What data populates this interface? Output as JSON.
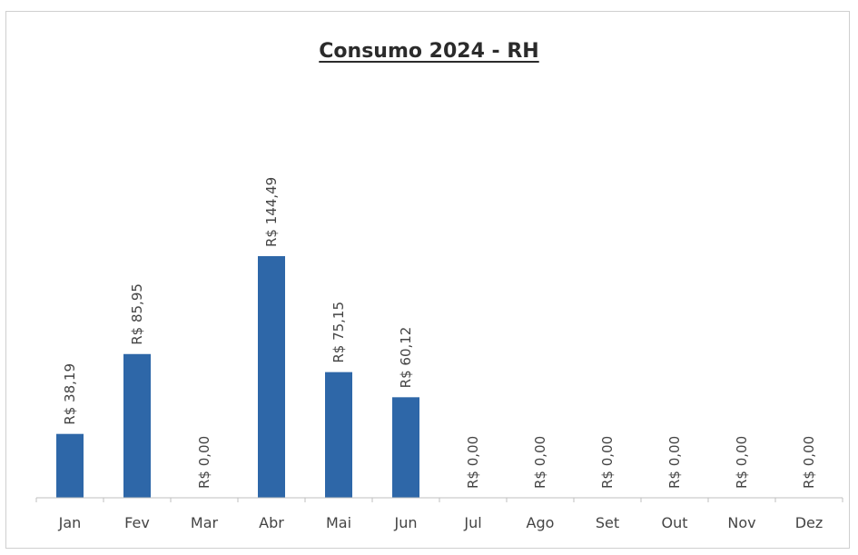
{
  "chart_data": {
    "type": "bar",
    "title": "Consumo 2024 - RH",
    "xlabel": "",
    "ylabel": "",
    "categories": [
      "Jan",
      "Fev",
      "Mar",
      "Abr",
      "Mai",
      "Jun",
      "Jul",
      "Ago",
      "Set",
      "Out",
      "Nov",
      "Dez"
    ],
    "values": [
      38.19,
      85.95,
      0.0,
      144.49,
      75.15,
      60.12,
      0.0,
      0.0,
      0.0,
      0.0,
      0.0,
      0.0
    ],
    "data_labels": [
      "R$ 38,19",
      "R$ 85,95",
      "R$ 0,00",
      "R$ 144,49",
      "R$ 75,15",
      "R$ 60,12",
      "R$ 0,00",
      "R$ 0,00",
      "R$ 0,00",
      "R$ 0,00",
      "R$ 0,00",
      "R$ 0,00"
    ],
    "ylim": [
      0,
      144.49
    ],
    "grid": false,
    "legend": "none",
    "bar_color": "#2e67a8",
    "axis_color": "#bfbfbf",
    "label_color": "#444444"
  }
}
